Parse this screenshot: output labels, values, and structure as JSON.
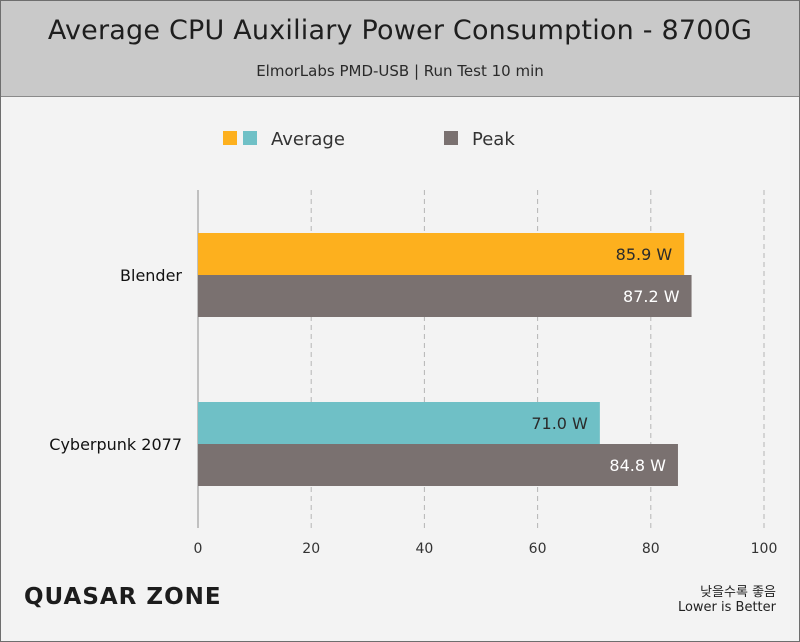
{
  "header": {
    "title": "Average CPU Auxiliary Power Consumption - 8700G",
    "subtitle": "ElmorLabs PMD-USB  |  Run Test 10 min"
  },
  "footer": {
    "logo": "QUASAR ZONE",
    "note_kr": "낮을수록 좋음",
    "note_en": "Lower is Better"
  },
  "colors": {
    "average_blender": "#fdb01e",
    "average_cyberpunk": "#6fc0c6",
    "peak": "#7a7170",
    "grid": "#b5b5b5",
    "label_text": "#2b2b2b"
  },
  "chart_data": {
    "type": "bar",
    "orientation": "horizontal",
    "categories": [
      "Blender",
      "Cyberpunk 2077"
    ],
    "series": [
      {
        "name": "Average",
        "values": [
          85.9,
          71.0
        ],
        "labels": [
          "85.9 W",
          "71.0 W"
        ]
      },
      {
        "name": "Peak",
        "values": [
          87.2,
          84.8
        ],
        "labels": [
          "87.2 W",
          "84.8 W"
        ]
      }
    ],
    "xlim": [
      0,
      100
    ],
    "xticks": [
      0,
      20,
      40,
      60,
      80,
      100
    ],
    "grid": "vertical dashed",
    "legend_position": "top"
  }
}
